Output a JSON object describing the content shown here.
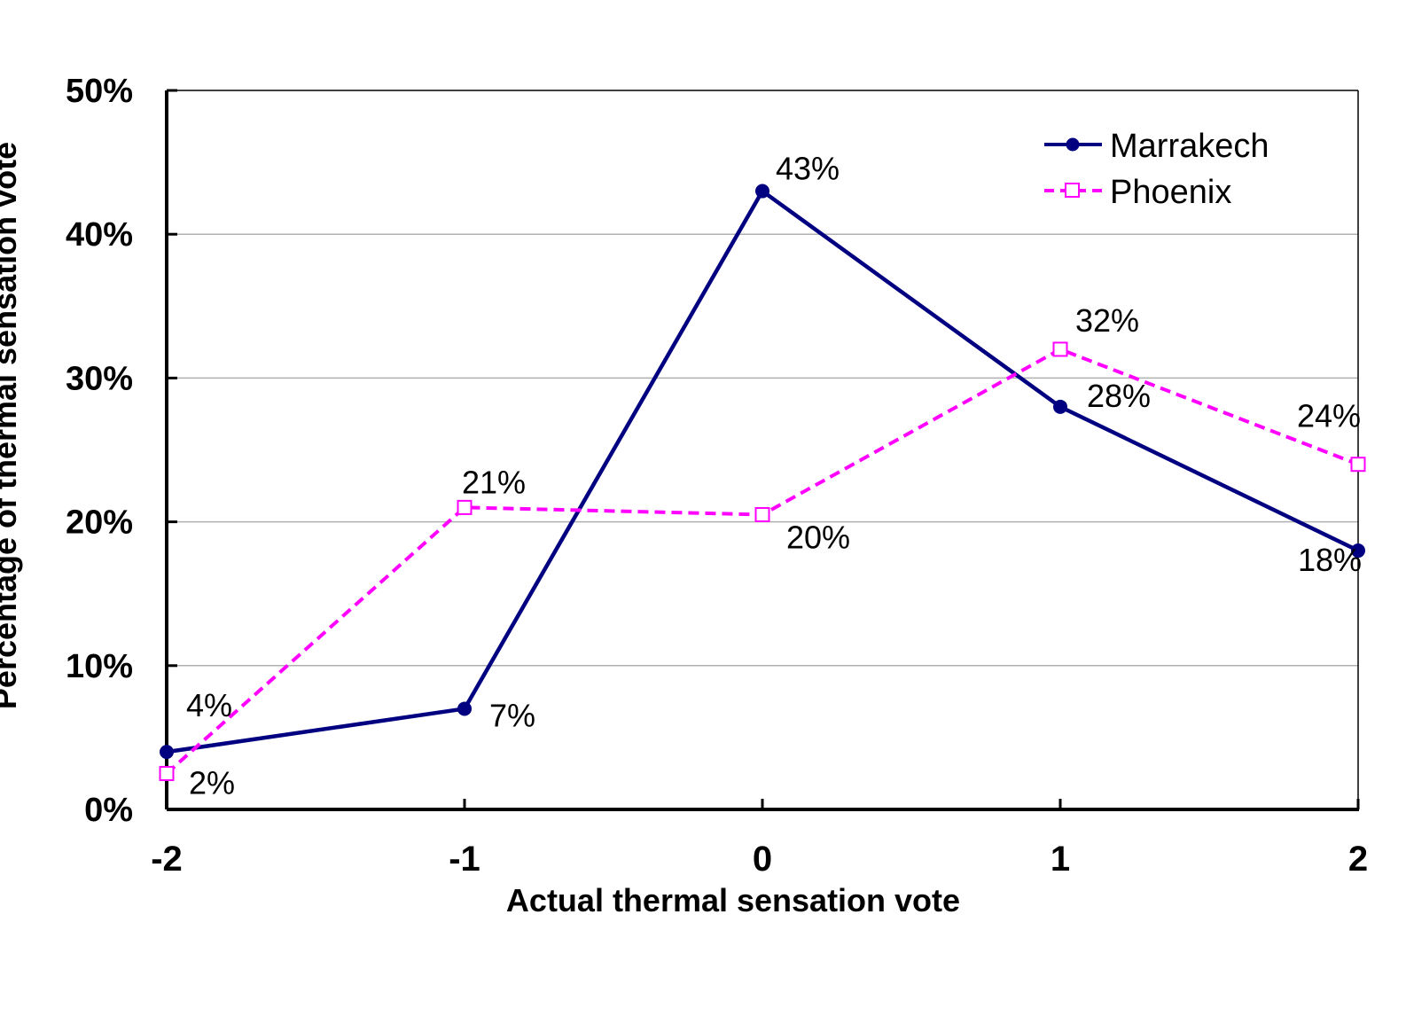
{
  "chart_data": {
    "type": "line",
    "xlabel": "Actual thermal sensation vote",
    "ylabel": "Percentage of thermal sensation vote",
    "x": [
      -2,
      -1,
      0,
      1,
      2
    ],
    "x_tick_labels": [
      "-2",
      "-1",
      "0",
      "1",
      "2"
    ],
    "y_tick_labels": [
      "0%",
      "10%",
      "20%",
      "30%",
      "40%",
      "50%"
    ],
    "ylim": [
      0,
      50
    ],
    "grid": "horizontal",
    "legend": "top-right",
    "series": [
      {
        "name": "Marrakech",
        "values": [
          4,
          7,
          43,
          28,
          18
        ],
        "labels": [
          "4%",
          "7%",
          "43%",
          "28%",
          "18%"
        ],
        "color": "#000080",
        "style": "solid",
        "marker": "filled-circle"
      },
      {
        "name": "Phoenix",
        "values": [
          2.5,
          21,
          20.5,
          32,
          24
        ],
        "labels": [
          "2%",
          "21%",
          "20%",
          "32%",
          "24%"
        ],
        "color": "#ff00ff",
        "style": "dashed",
        "marker": "open-square"
      }
    ]
  }
}
